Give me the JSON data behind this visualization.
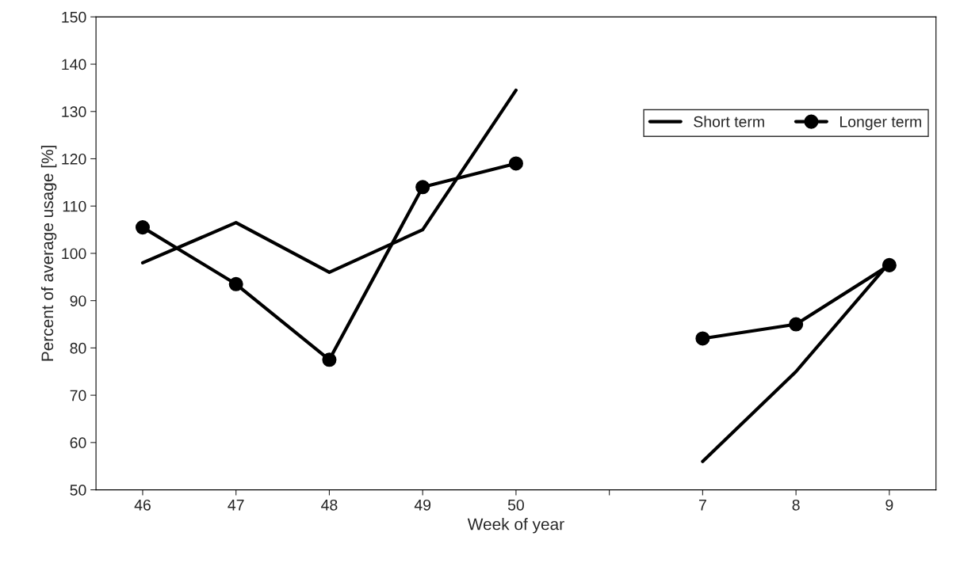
{
  "chart_data": {
    "type": "line",
    "xlabel": "Week of year",
    "ylabel": "Percent of average usage [%]",
    "categories": [
      "46",
      "47",
      "48",
      "49",
      "50",
      null,
      "7",
      "8",
      "9"
    ],
    "series": [
      {
        "name": "Short term",
        "color": "#000000",
        "marker": "none",
        "values": [
          98,
          106.5,
          96,
          105,
          134.5,
          null,
          56,
          75,
          98
        ]
      },
      {
        "name": "Longer term",
        "color": "#000000",
        "marker": "circle",
        "values": [
          105.5,
          93.5,
          77.5,
          114,
          119,
          null,
          82,
          85,
          97.5
        ]
      }
    ],
    "ylim": [
      50,
      150
    ],
    "yticks": [
      50,
      60,
      70,
      80,
      90,
      100,
      110,
      120,
      130,
      140,
      150
    ],
    "grid": false,
    "legend": "top right",
    "line_style": "solid"
  }
}
